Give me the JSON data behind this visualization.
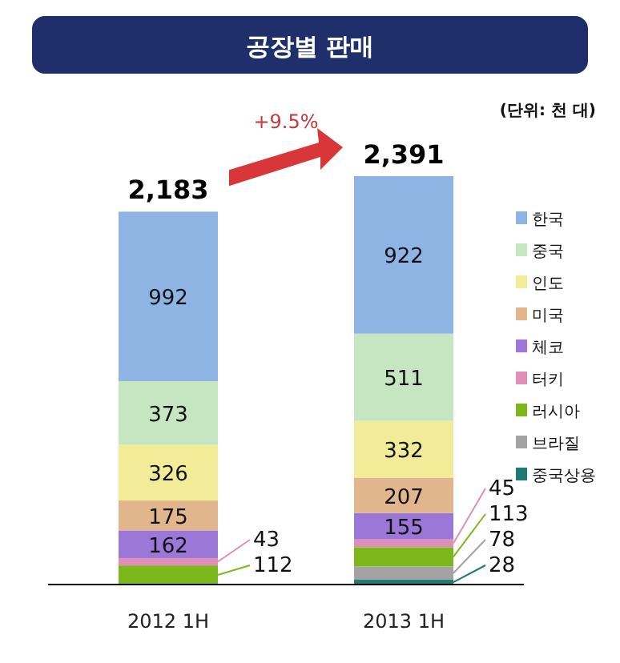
{
  "chart_data": {
    "type": "bar",
    "stacked": true,
    "title": "공장별 판매",
    "annotations": [
      "(단위: 천 대)",
      "+9.5%"
    ],
    "categories": [
      "2012 1H",
      "2013 1H"
    ],
    "series": [
      {
        "name": "중국상용",
        "color": "#1f7a73",
        "values": [
          null,
          28
        ]
      },
      {
        "name": "브라질",
        "color": "#a3a3a3",
        "values": [
          null,
          78
        ]
      },
      {
        "name": "러시아",
        "color": "#7cb81c",
        "values": [
          112,
          113
        ]
      },
      {
        "name": "터키",
        "color": "#e08fb8",
        "values": [
          43,
          45
        ]
      },
      {
        "name": "체코",
        "color": "#9b78d8",
        "values": [
          162,
          155
        ]
      },
      {
        "name": "미국",
        "color": "#e2b68c",
        "values": [
          175,
          207
        ]
      },
      {
        "name": "인도",
        "color": "#f2ec98",
        "values": [
          326,
          332
        ]
      },
      {
        "name": "중국",
        "color": "#c6e6c2",
        "values": [
          373,
          511
        ]
      },
      {
        "name": "한국",
        "color": "#8db4e2",
        "values": [
          992,
          922
        ]
      }
    ],
    "totals": [
      "2,183",
      "2,391"
    ],
    "data_labels": true,
    "legend": "right"
  }
}
